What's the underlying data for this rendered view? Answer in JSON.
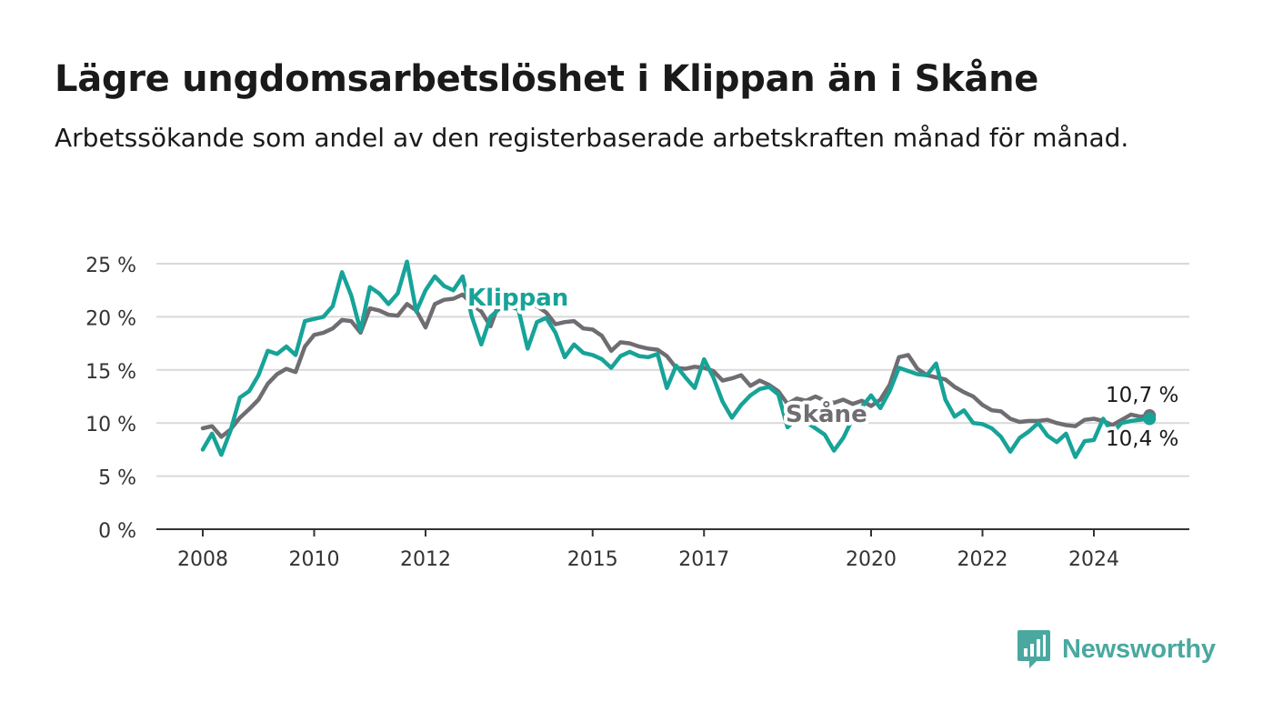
{
  "title": "Lägre ungdomsarbetslöshet i Klippan än i Skåne",
  "subtitle": "Arbetssökande som andel av den registerbaserade arbetskraften månad för månad.",
  "brand": {
    "name": "Newsworthy",
    "icon": "newsworthy-chart-icon",
    "color": "#4aa8a0"
  },
  "chart_data": {
    "type": "line",
    "ylim": [
      0,
      25
    ],
    "yticks": [
      0,
      5,
      10,
      15,
      20,
      25
    ],
    "ytick_labels": [
      "0 %",
      "5 %",
      "10 %",
      "15 %",
      "20 %",
      "25 %"
    ],
    "xlim": [
      "2007-10",
      "2025-05"
    ],
    "xticks": [
      "2008-01",
      "2010-01",
      "2012-01",
      "2015-01",
      "2017-01",
      "2020-01",
      "2022-01",
      "2024-01"
    ],
    "xtick_labels": [
      "2008",
      "2010",
      "2012",
      "2015",
      "2017",
      "2020",
      "2022",
      "2024"
    ],
    "grid": true,
    "series": [
      {
        "name": "Skåne",
        "color": "#6f6d72",
        "end_label": "10,7 %",
        "points": [
          [
            "2008-01",
            9.5
          ],
          [
            "2008-03",
            9.7
          ],
          [
            "2008-05",
            8.7
          ],
          [
            "2008-07",
            9.4
          ],
          [
            "2008-09",
            10.5
          ],
          [
            "2008-11",
            11.3
          ],
          [
            "2009-01",
            12.2
          ],
          [
            "2009-03",
            13.7
          ],
          [
            "2009-05",
            14.6
          ],
          [
            "2009-07",
            15.1
          ],
          [
            "2009-09",
            14.8
          ],
          [
            "2009-11",
            17.2
          ],
          [
            "2010-01",
            18.3
          ],
          [
            "2010-03",
            18.5
          ],
          [
            "2010-05",
            18.9
          ],
          [
            "2010-07",
            19.7
          ],
          [
            "2010-09",
            19.6
          ],
          [
            "2010-11",
            18.5
          ],
          [
            "2011-01",
            20.8
          ],
          [
            "2011-03",
            20.6
          ],
          [
            "2011-05",
            20.2
          ],
          [
            "2011-07",
            20.1
          ],
          [
            "2011-09",
            21.2
          ],
          [
            "2011-11",
            20.6
          ],
          [
            "2012-01",
            19.0
          ],
          [
            "2012-03",
            21.2
          ],
          [
            "2012-05",
            21.6
          ],
          [
            "2012-07",
            21.7
          ],
          [
            "2012-09",
            22.1
          ],
          [
            "2012-11",
            21.2
          ],
          [
            "2013-01",
            20.5
          ],
          [
            "2013-03",
            19.1
          ],
          [
            "2013-05",
            21.5
          ],
          [
            "2013-07",
            21.8
          ],
          [
            "2013-09",
            21.0
          ],
          [
            "2013-11",
            21.2
          ],
          [
            "2014-01",
            21.0
          ],
          [
            "2014-03",
            20.4
          ],
          [
            "2014-05",
            19.3
          ],
          [
            "2014-07",
            19.5
          ],
          [
            "2014-09",
            19.6
          ],
          [
            "2014-11",
            18.9
          ],
          [
            "2015-01",
            18.8
          ],
          [
            "2015-03",
            18.2
          ],
          [
            "2015-05",
            16.8
          ],
          [
            "2015-07",
            17.6
          ],
          [
            "2015-09",
            17.5
          ],
          [
            "2015-11",
            17.2
          ],
          [
            "2016-01",
            17.0
          ],
          [
            "2016-03",
            16.9
          ],
          [
            "2016-05",
            16.3
          ],
          [
            "2016-07",
            15.2
          ],
          [
            "2016-09",
            15.1
          ],
          [
            "2016-11",
            15.3
          ],
          [
            "2017-01",
            15.2
          ],
          [
            "2017-03",
            14.9
          ],
          [
            "2017-05",
            14.0
          ],
          [
            "2017-07",
            14.2
          ],
          [
            "2017-09",
            14.5
          ],
          [
            "2017-11",
            13.5
          ],
          [
            "2018-01",
            14.0
          ],
          [
            "2018-03",
            13.6
          ],
          [
            "2018-05",
            13.0
          ],
          [
            "2018-07",
            11.8
          ],
          [
            "2018-09",
            12.3
          ],
          [
            "2018-11",
            12.1
          ],
          [
            "2019-01",
            12.5
          ],
          [
            "2019-03",
            12.1
          ],
          [
            "2019-05",
            11.9
          ],
          [
            "2019-07",
            12.2
          ],
          [
            "2019-09",
            11.8
          ],
          [
            "2019-11",
            12.1
          ],
          [
            "2020-01",
            11.6
          ],
          [
            "2020-03",
            12.2
          ],
          [
            "2020-05",
            13.6
          ],
          [
            "2020-07",
            16.2
          ],
          [
            "2020-09",
            16.4
          ],
          [
            "2020-11",
            15.1
          ],
          [
            "2021-01",
            14.5
          ],
          [
            "2021-03",
            14.3
          ],
          [
            "2021-05",
            14.1
          ],
          [
            "2021-07",
            13.4
          ],
          [
            "2021-09",
            12.9
          ],
          [
            "2021-11",
            12.5
          ],
          [
            "2022-01",
            11.7
          ],
          [
            "2022-03",
            11.2
          ],
          [
            "2022-05",
            11.1
          ],
          [
            "2022-07",
            10.4
          ],
          [
            "2022-09",
            10.1
          ],
          [
            "2022-11",
            10.2
          ],
          [
            "2023-01",
            10.2
          ],
          [
            "2023-03",
            10.3
          ],
          [
            "2023-05",
            10.0
          ],
          [
            "2023-07",
            9.8
          ],
          [
            "2023-09",
            9.7
          ],
          [
            "2023-11",
            10.3
          ],
          [
            "2024-01",
            10.4
          ],
          [
            "2024-03",
            10.2
          ],
          [
            "2024-05",
            9.8
          ],
          [
            "2024-07",
            10.3
          ],
          [
            "2024-09",
            10.8
          ],
          [
            "2024-11",
            10.6
          ],
          [
            "2025-01",
            10.7
          ]
        ]
      },
      {
        "name": "Klippan",
        "color": "#17a398",
        "end_label": "10,4 %",
        "points": [
          [
            "2008-01",
            7.5
          ],
          [
            "2008-03",
            9.0
          ],
          [
            "2008-05",
            7.0
          ],
          [
            "2008-07",
            9.3
          ],
          [
            "2008-09",
            12.4
          ],
          [
            "2008-11",
            13.0
          ],
          [
            "2009-01",
            14.5
          ],
          [
            "2009-03",
            16.8
          ],
          [
            "2009-05",
            16.5
          ],
          [
            "2009-07",
            17.2
          ],
          [
            "2009-09",
            16.4
          ],
          [
            "2009-11",
            19.6
          ],
          [
            "2010-01",
            19.8
          ],
          [
            "2010-03",
            20.0
          ],
          [
            "2010-05",
            21.0
          ],
          [
            "2010-07",
            24.2
          ],
          [
            "2010-09",
            22.0
          ],
          [
            "2010-11",
            18.7
          ],
          [
            "2011-01",
            22.8
          ],
          [
            "2011-03",
            22.2
          ],
          [
            "2011-05",
            21.2
          ],
          [
            "2011-07",
            22.2
          ],
          [
            "2011-09",
            25.2
          ],
          [
            "2011-11",
            20.5
          ],
          [
            "2012-01",
            22.5
          ],
          [
            "2012-03",
            23.8
          ],
          [
            "2012-05",
            22.9
          ],
          [
            "2012-07",
            22.5
          ],
          [
            "2012-09",
            23.8
          ],
          [
            "2012-11",
            20.0
          ],
          [
            "2013-01",
            17.4
          ],
          [
            "2013-03",
            20.0
          ],
          [
            "2013-05",
            20.8
          ],
          [
            "2013-07",
            21.0
          ],
          [
            "2013-09",
            20.7
          ],
          [
            "2013-11",
            17.0
          ],
          [
            "2014-01",
            19.5
          ],
          [
            "2014-03",
            19.9
          ],
          [
            "2014-05",
            18.5
          ],
          [
            "2014-07",
            16.2
          ],
          [
            "2014-09",
            17.4
          ],
          [
            "2014-11",
            16.6
          ],
          [
            "2015-01",
            16.4
          ],
          [
            "2015-03",
            16.0
          ],
          [
            "2015-05",
            15.2
          ],
          [
            "2015-07",
            16.3
          ],
          [
            "2015-09",
            16.7
          ],
          [
            "2015-11",
            16.3
          ],
          [
            "2016-01",
            16.2
          ],
          [
            "2016-03",
            16.5
          ],
          [
            "2016-05",
            13.3
          ],
          [
            "2016-07",
            15.4
          ],
          [
            "2016-09",
            14.3
          ],
          [
            "2016-11",
            13.3
          ],
          [
            "2017-01",
            16.0
          ],
          [
            "2017-03",
            14.3
          ],
          [
            "2017-05",
            12.0
          ],
          [
            "2017-07",
            10.5
          ],
          [
            "2017-09",
            11.7
          ],
          [
            "2017-11",
            12.6
          ],
          [
            "2018-01",
            13.2
          ],
          [
            "2018-03",
            13.4
          ],
          [
            "2018-05",
            12.7
          ],
          [
            "2018-07",
            9.6
          ],
          [
            "2018-09",
            10.4
          ],
          [
            "2018-11",
            10.1
          ],
          [
            "2019-01",
            9.5
          ],
          [
            "2019-03",
            8.9
          ],
          [
            "2019-05",
            7.4
          ],
          [
            "2019-07",
            8.6
          ],
          [
            "2019-09",
            10.4
          ],
          [
            "2019-11",
            11.5
          ],
          [
            "2020-01",
            12.6
          ],
          [
            "2020-03",
            11.4
          ],
          [
            "2020-05",
            13.0
          ],
          [
            "2020-07",
            15.2
          ],
          [
            "2020-09",
            14.9
          ],
          [
            "2020-11",
            14.6
          ],
          [
            "2021-01",
            14.5
          ],
          [
            "2021-03",
            15.6
          ],
          [
            "2021-05",
            12.2
          ],
          [
            "2021-07",
            10.6
          ],
          [
            "2021-09",
            11.2
          ],
          [
            "2021-11",
            10.0
          ],
          [
            "2022-01",
            9.9
          ],
          [
            "2022-03",
            9.5
          ],
          [
            "2022-05",
            8.7
          ],
          [
            "2022-07",
            7.3
          ],
          [
            "2022-09",
            8.6
          ],
          [
            "2022-11",
            9.2
          ],
          [
            "2023-01",
            10.0
          ],
          [
            "2023-03",
            8.8
          ],
          [
            "2023-05",
            8.2
          ],
          [
            "2023-07",
            9.0
          ],
          [
            "2023-09",
            6.8
          ],
          [
            "2023-11",
            8.3
          ],
          [
            "2024-01",
            8.4
          ],
          [
            "2024-03",
            10.4
          ],
          [
            "2024-05",
            9.1
          ],
          [
            "2024-07",
            10.0
          ],
          [
            "2024-09",
            10.2
          ],
          [
            "2024-11",
            10.3
          ],
          [
            "2025-01",
            10.4
          ]
        ]
      }
    ]
  }
}
